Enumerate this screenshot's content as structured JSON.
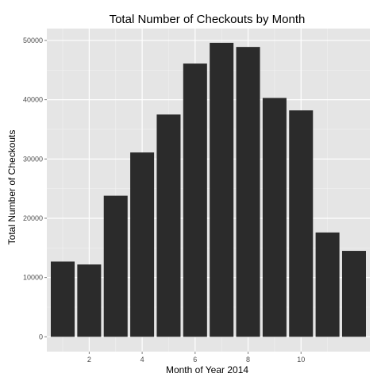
{
  "colors": {
    "panel_background": "#e5e5e5",
    "grid_major": "#ffffff",
    "grid_minor": "#f2f2f2",
    "bar_fill": "#2b2b2b",
    "tick_mark": "#7f7f7f",
    "tick_text": "#4d4d4d"
  },
  "chart_data": {
    "type": "bar",
    "title": "Total Number of Checkouts by Month",
    "xlabel": "Month of Year 2014",
    "ylabel": "Total Number of Checkouts",
    "categories": [
      1,
      2,
      3,
      4,
      5,
      6,
      7,
      8,
      9,
      10,
      11,
      12
    ],
    "values": [
      12700,
      12200,
      23800,
      31100,
      37500,
      46100,
      49600,
      48900,
      40300,
      38200,
      17600,
      14500
    ],
    "xlim": [
      0.4,
      12.6
    ],
    "ylim": [
      -2500,
      52000
    ],
    "x_ticks": [
      2,
      4,
      6,
      8,
      10
    ],
    "y_ticks": [
      0,
      10000,
      20000,
      30000,
      40000,
      50000
    ],
    "grid": true,
    "legend": "none"
  }
}
